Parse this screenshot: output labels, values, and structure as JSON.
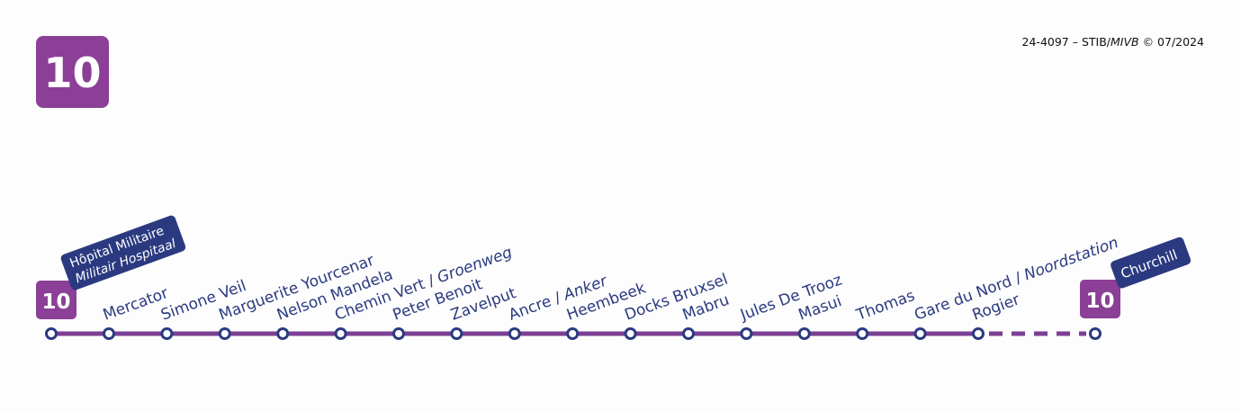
{
  "header": {
    "line": "10",
    "credit": [
      "24-4097 – STIB/",
      "MIVB",
      " © 07/2024"
    ]
  },
  "terminus_start": {
    "line": "10",
    "name": "Hôpital Militaire",
    "alt": "Militair Hospitaal"
  },
  "stations": [
    {
      "name": "Mercator"
    },
    {
      "name": "Simone Veil"
    },
    {
      "name": "Marguerite Yourcenar"
    },
    {
      "name": "Nelson Mandela"
    },
    {
      "name": "Chemin Vert /",
      "alt": "Groenweg"
    },
    {
      "name": "Peter Benoit"
    },
    {
      "name": "Zavelput"
    },
    {
      "name": "Ancre /",
      "alt": "Anker"
    },
    {
      "name": "Heembeek"
    },
    {
      "name": "Docks Bruxsel"
    },
    {
      "name": "Mabru"
    },
    {
      "name": "Jules De Trooz"
    },
    {
      "name": "Masui"
    },
    {
      "name": "Thomas"
    },
    {
      "name": "Gare du Nord /",
      "alt": "Noordstation"
    },
    {
      "name": "Rogier"
    }
  ],
  "terminus_end": {
    "line": "10",
    "name": "Churchill"
  }
}
